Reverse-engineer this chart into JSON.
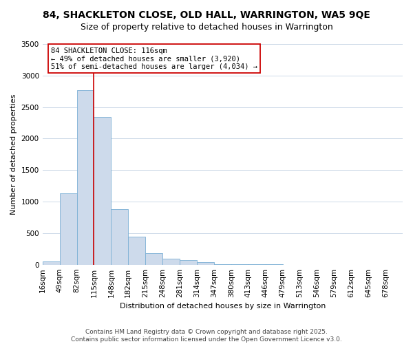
{
  "title": "84, SHACKLETON CLOSE, OLD HALL, WARRINGTON, WA5 9QE",
  "subtitle": "Size of property relative to detached houses in Warrington",
  "xlabel": "Distribution of detached houses by size in Warrington",
  "ylabel": "Number of detached properties",
  "bar_values": [
    50,
    1130,
    2770,
    2340,
    880,
    440,
    185,
    100,
    70,
    35,
    10,
    5,
    3,
    2,
    1,
    1,
    0,
    0,
    0,
    0,
    0
  ],
  "bin_labels": [
    "16sqm",
    "49sqm",
    "82sqm",
    "115sqm",
    "148sqm",
    "182sqm",
    "215sqm",
    "248sqm",
    "281sqm",
    "314sqm",
    "347sqm",
    "380sqm",
    "413sqm",
    "446sqm",
    "479sqm",
    "513sqm",
    "546sqm",
    "579sqm",
    "612sqm",
    "645sqm",
    "678sqm"
  ],
  "bar_color": "#cddaeb",
  "bar_edge_color": "#7aafd4",
  "annotation_line1": "84 SHACKLETON CLOSE: 116sqm",
  "annotation_line2": "← 49% of detached houses are smaller (3,920)",
  "annotation_line3": "51% of semi-detached houses are larger (4,034) →",
  "vline_x_index": 3,
  "vline_color": "#cc0000",
  "ylim": [
    0,
    3500
  ],
  "yticks": [
    0,
    500,
    1000,
    1500,
    2000,
    2500,
    3000,
    3500
  ],
  "bg_color": "#ffffff",
  "grid_color": "#cdd9e8",
  "footer_line1": "Contains HM Land Registry data © Crown copyright and database right 2025.",
  "footer_line2": "Contains public sector information licensed under the Open Government Licence v3.0.",
  "title_fontsize": 10,
  "subtitle_fontsize": 9,
  "annotation_fontsize": 7.5,
  "axis_label_fontsize": 8,
  "tick_fontsize": 7.5,
  "footer_fontsize": 6.5
}
